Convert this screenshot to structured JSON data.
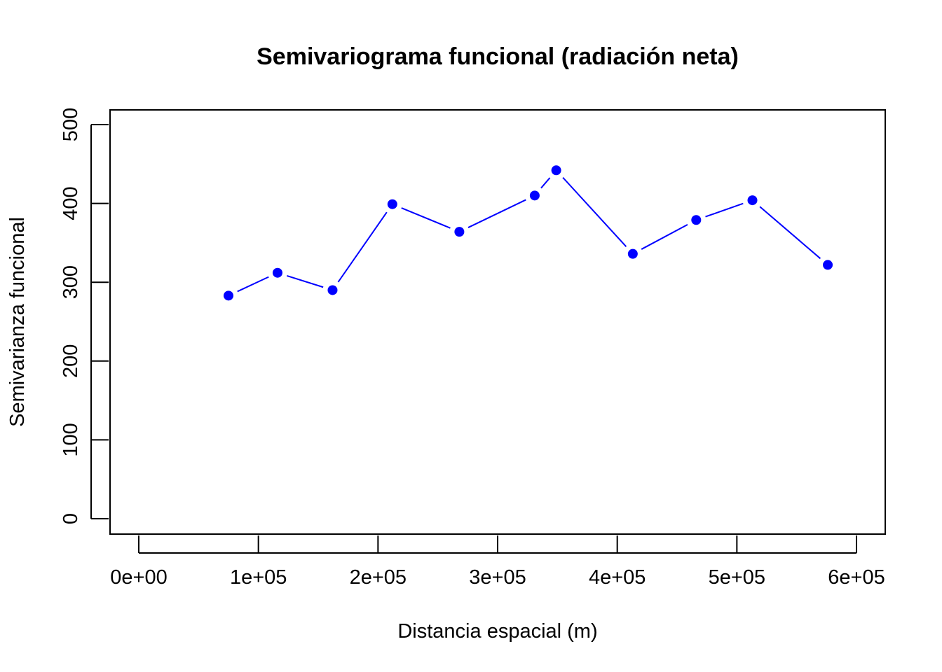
{
  "chart_data": {
    "type": "line",
    "title": "Semivariograma funcional (radiación neta)",
    "xlabel": "Distancia espacial (m)",
    "ylabel": "Semivarianza funcional",
    "xlim": [
      0,
      600000
    ],
    "ylim": [
      0,
      500
    ],
    "x_ticks": [
      0,
      100000,
      200000,
      300000,
      400000,
      500000,
      600000
    ],
    "x_tick_labels": [
      "0e+00",
      "1e+05",
      "2e+05",
      "3e+05",
      "4e+05",
      "5e+05",
      "6e+05"
    ],
    "y_ticks": [
      0,
      100,
      200,
      300,
      400,
      500
    ],
    "y_tick_labels": [
      "0",
      "100",
      "200",
      "300",
      "400",
      "500"
    ],
    "grid": false,
    "legend": "none",
    "colors": {
      "series": "#0000ff",
      "axes": "#000000"
    },
    "series": [
      {
        "x": [
          75000,
          116000,
          162000,
          212000,
          268000,
          331000,
          349000,
          413000,
          466000,
          513000,
          576000
        ],
        "y": [
          283,
          312,
          290,
          399,
          364,
          410,
          442,
          336,
          379,
          404,
          322
        ]
      }
    ]
  }
}
